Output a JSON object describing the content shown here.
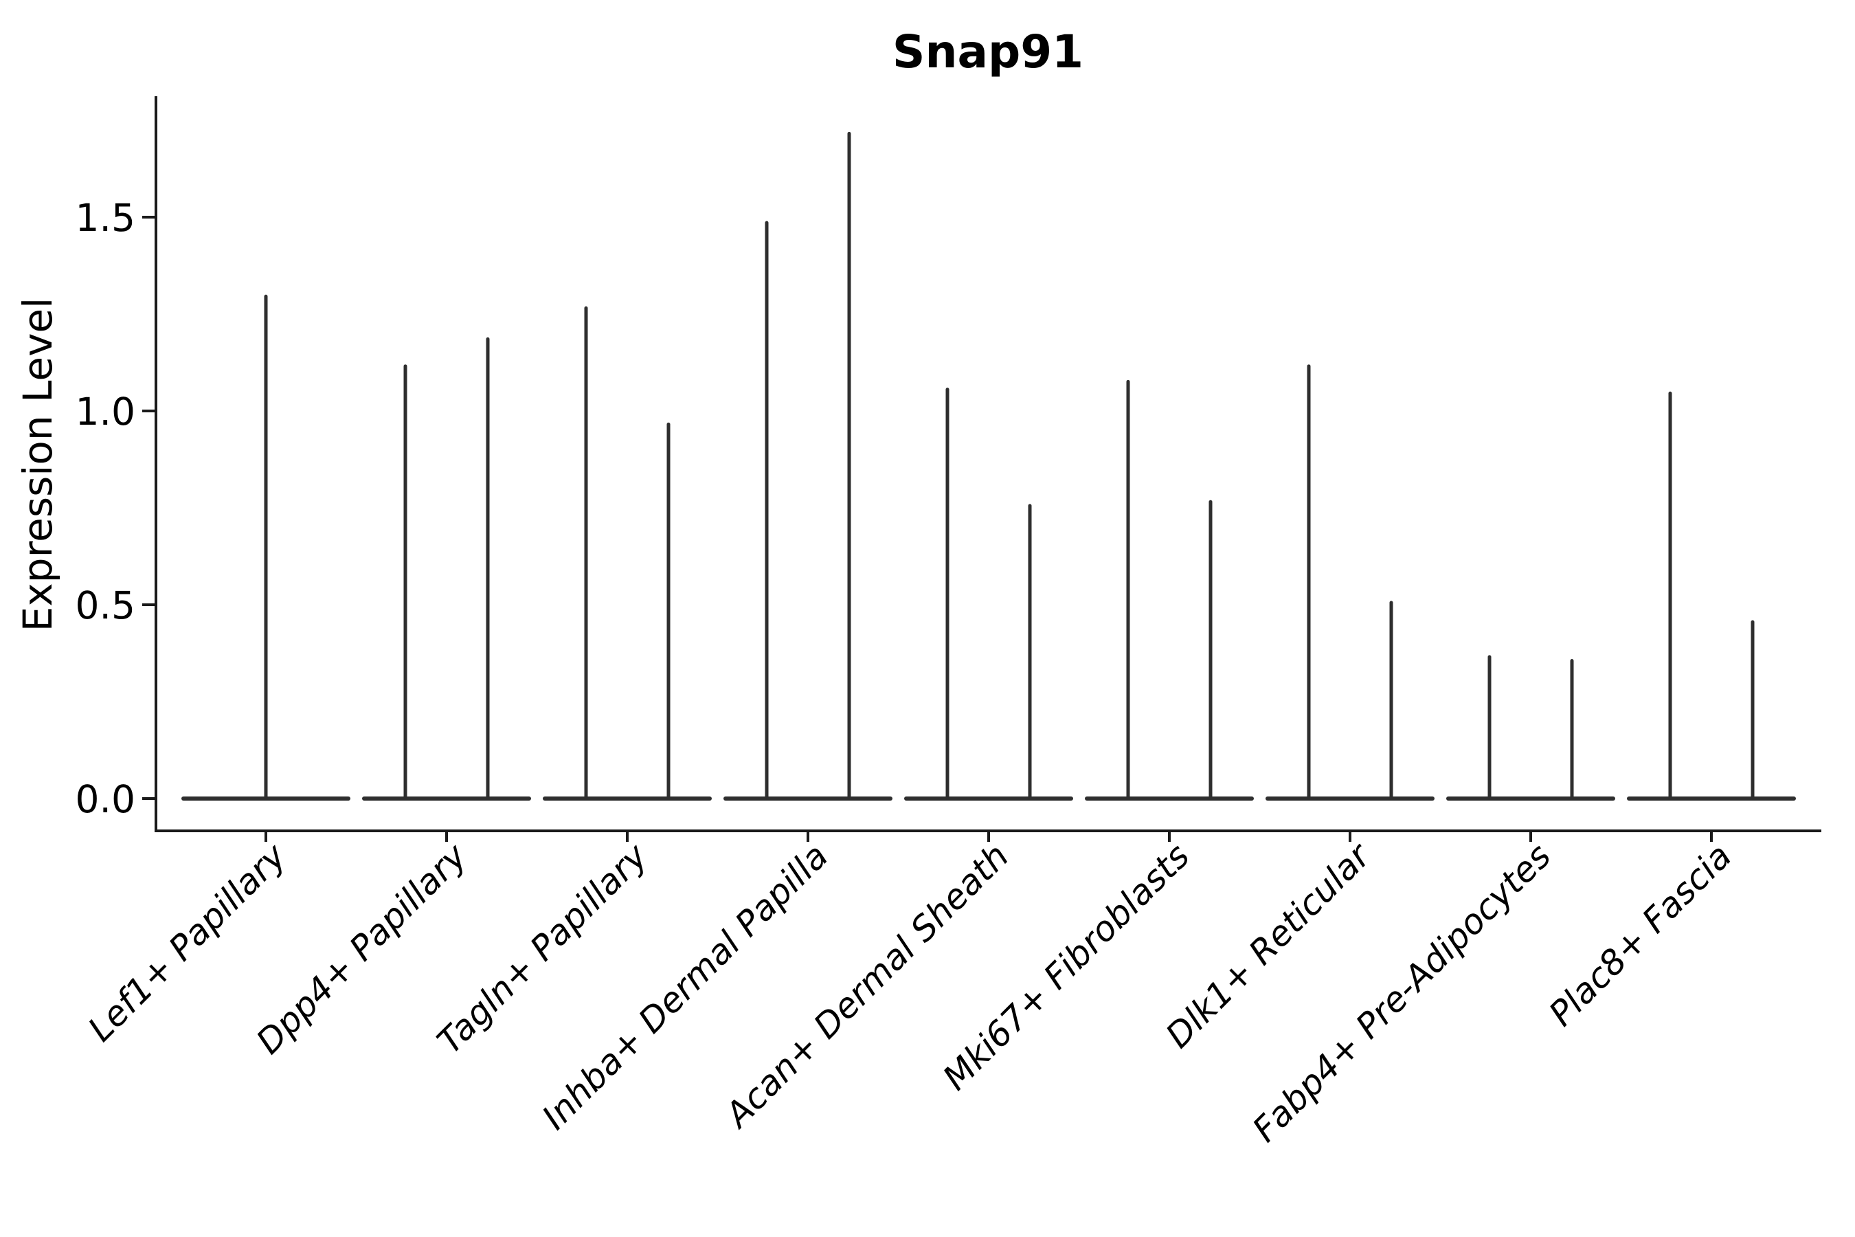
{
  "figure": {
    "title": "Snap91",
    "background_color": "#ffffff",
    "line_color": "#2e2e2e",
    "spine_color": "#1a1a1a"
  },
  "chart_data": {
    "type": "violin",
    "title": "Snap91",
    "xlabel": "",
    "ylabel": "Expression Level",
    "ylim": [
      0,
      1.8
    ],
    "yticks": [
      0.0,
      0.5,
      1.0,
      1.5
    ],
    "ytick_labels": [
      "0.0",
      "0.5",
      "1.0",
      "1.5"
    ],
    "grid": false,
    "legend_position": "none",
    "x_tick_rotation_deg": 45,
    "note": "Each category shows narrow violin(s) collapsed flat at 0 with thin vertical spikes reaching the maximum expression value; most categories show two violins side by side, Lef1+ Papillary shows one centered violin.",
    "categories": [
      "Lef1+ Papillary",
      "Dpp4+ Papillary",
      "Tagln+ Papillary",
      "Inhba+ Dermal Papilla",
      "Acan+ Dermal Sheath",
      "Mki67+ Fibroblasts",
      "Dlk1+ Reticular",
      "Fabp4+ Pre-Adipocytes",
      "Plac8+ Fascia"
    ],
    "violin_maxima": [
      [
        1.3
      ],
      [
        1.12,
        1.19
      ],
      [
        1.27,
        0.97
      ],
      [
        1.49,
        1.72
      ],
      [
        1.06,
        0.76
      ],
      [
        1.08,
        0.77
      ],
      [
        1.12,
        0.51
      ],
      [
        0.37,
        0.36
      ],
      [
        1.05,
        0.46
      ]
    ],
    "violin_baseline_value": 0.0
  }
}
